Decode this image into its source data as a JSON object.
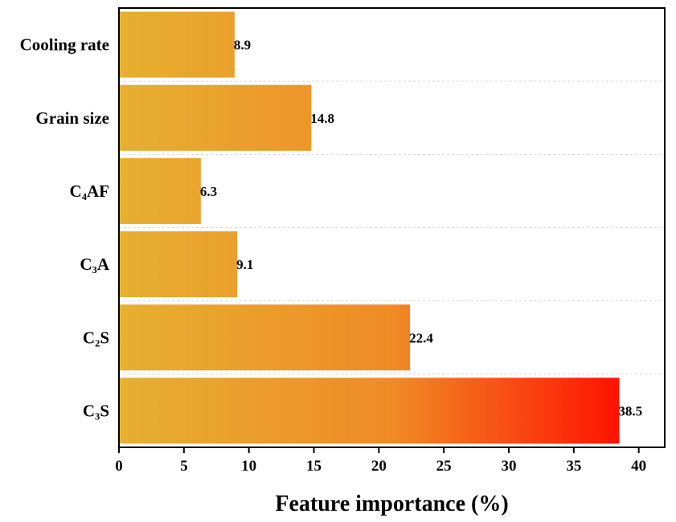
{
  "chart_data": {
    "type": "bar",
    "orientation": "horizontal",
    "title": "",
    "xlabel": "Feature importance (%)",
    "ylabel": "",
    "categories": [
      "Cooling rate",
      "Grain size",
      "C₄AF",
      "C₃A",
      "C₂S",
      "C₃S"
    ],
    "values": [
      8.9,
      14.8,
      6.3,
      9.1,
      22.4,
      38.5
    ],
    "value_labels": [
      "8.9",
      "14.8",
      "6.3",
      "9.1",
      "22.4",
      "38.5"
    ],
    "xlim": [
      0,
      42
    ],
    "xticks": [
      0,
      5,
      10,
      15,
      20,
      25,
      30,
      35,
      40
    ],
    "xtick_labels": [
      "0",
      "5",
      "10",
      "15",
      "20",
      "25",
      "30",
      "35",
      "40"
    ],
    "grid": "horizontal-dashed",
    "colors": {
      "gradient_start": "#e6b030",
      "gradient_mid": "#f08a26",
      "gradient_end": "#ff1200",
      "axis": "#000000"
    }
  }
}
